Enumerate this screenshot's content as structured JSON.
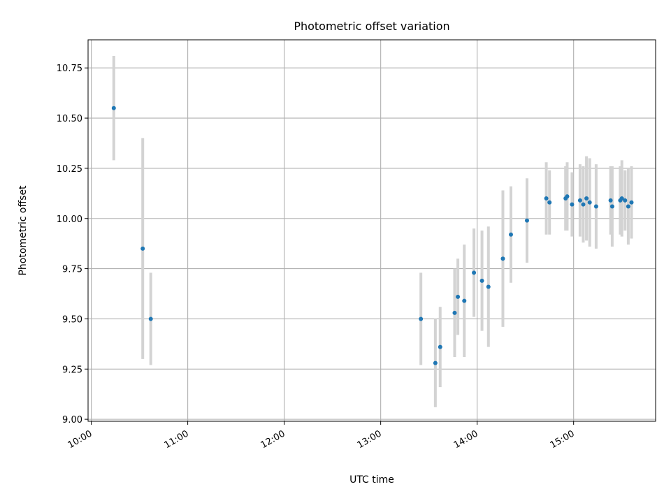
{
  "chart_data": {
    "type": "scatter",
    "title": "Photometric offset variation",
    "xlabel": "UTC time",
    "ylabel": "Photometric offset",
    "xlim": [
      "09:58",
      "15:51"
    ],
    "ylim": [
      8.99,
      10.89
    ],
    "grid": true,
    "x_ticks": [
      "10:00",
      "11:00",
      "12:00",
      "13:00",
      "14:00",
      "15:00"
    ],
    "y_ticks": [
      "9.00",
      "9.25",
      "9.50",
      "9.75",
      "10.00",
      "10.25",
      "10.50",
      "10.75"
    ],
    "colors": {
      "marker": "#1f77b4",
      "errorbar": "#d3d3d3",
      "grid": "#b0b0b0"
    },
    "series": [
      {
        "points": [
          {
            "x": "10:14",
            "y": 10.55,
            "yerr": 0.26
          },
          {
            "x": "10:32",
            "y": 9.85,
            "yerr": 0.55
          },
          {
            "x": "10:37",
            "y": 9.5,
            "yerr": 0.23
          },
          {
            "x": "13:25",
            "y": 9.5,
            "yerr": 0.23
          },
          {
            "x": "13:34",
            "y": 9.28,
            "yerr": 0.22
          },
          {
            "x": "13:37",
            "y": 9.36,
            "yerr": 0.2
          },
          {
            "x": "13:46",
            "y": 9.53,
            "yerr": 0.22
          },
          {
            "x": "13:48",
            "y": 9.61,
            "yerr": 0.19
          },
          {
            "x": "13:52",
            "y": 9.59,
            "yerr": 0.28
          },
          {
            "x": "13:58",
            "y": 9.73,
            "yerr": 0.22
          },
          {
            "x": "14:03",
            "y": 9.69,
            "yerr": 0.25
          },
          {
            "x": "14:07",
            "y": 9.66,
            "yerr": 0.3
          },
          {
            "x": "14:16",
            "y": 9.8,
            "yerr": 0.34
          },
          {
            "x": "14:21",
            "y": 9.92,
            "yerr": 0.24
          },
          {
            "x": "14:31",
            "y": 9.99,
            "yerr": 0.21
          },
          {
            "x": "14:43",
            "y": 10.1,
            "yerr": 0.18
          },
          {
            "x": "14:45",
            "y": 10.08,
            "yerr": 0.16
          },
          {
            "x": "14:55",
            "y": 10.1,
            "yerr": 0.16
          },
          {
            "x": "14:56",
            "y": 10.11,
            "yerr": 0.17
          },
          {
            "x": "14:59",
            "y": 10.07,
            "yerr": 0.16
          },
          {
            "x": "15:04",
            "y": 10.09,
            "yerr": 0.18
          },
          {
            "x": "15:06",
            "y": 10.07,
            "yerr": 0.19
          },
          {
            "x": "15:08",
            "y": 10.1,
            "yerr": 0.21
          },
          {
            "x": "15:10",
            "y": 10.08,
            "yerr": 0.22
          },
          {
            "x": "15:14",
            "y": 10.06,
            "yerr": 0.21
          },
          {
            "x": "15:23",
            "y": 10.09,
            "yerr": 0.17
          },
          {
            "x": "15:24",
            "y": 10.06,
            "yerr": 0.2
          },
          {
            "x": "15:29",
            "y": 10.09,
            "yerr": 0.17
          },
          {
            "x": "15:30",
            "y": 10.1,
            "yerr": 0.19
          },
          {
            "x": "15:32",
            "y": 10.09,
            "yerr": 0.15
          },
          {
            "x": "15:34",
            "y": 10.06,
            "yerr": 0.19
          },
          {
            "x": "15:36",
            "y": 10.08,
            "yerr": 0.18
          }
        ]
      }
    ]
  }
}
